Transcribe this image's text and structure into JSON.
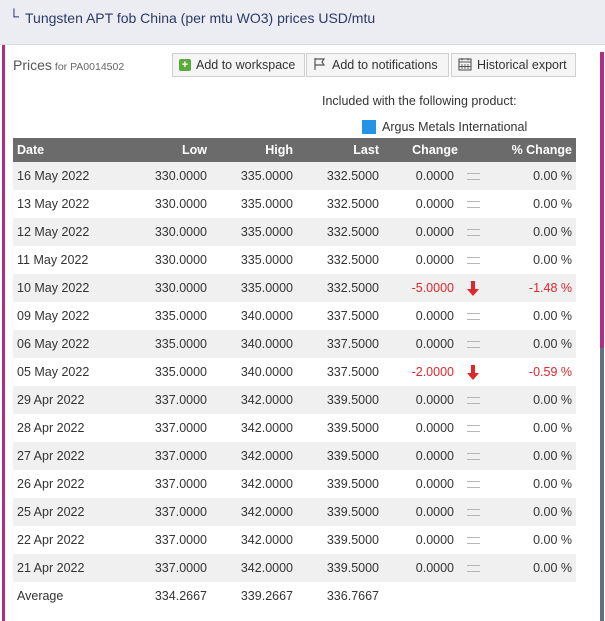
{
  "header": {
    "title": "Tungsten APT fob China (per mtu WO3) prices USD/mtu"
  },
  "prices_panel": {
    "label": "Prices",
    "code_label": "for PA0014502"
  },
  "toolbar": {
    "workspace_label": "Add to workspace",
    "notifications_label": "Add to notifications",
    "export_label": "Historical export"
  },
  "included": {
    "text": "Included with the following product:",
    "product_name": "Argus Metals International",
    "product_color": "#2394e6"
  },
  "table": {
    "headers": {
      "date": "Date",
      "low": "Low",
      "high": "High",
      "last": "Last",
      "change": "Change",
      "pct_change": "% Change"
    },
    "rows": [
      {
        "date": "16 May 2022",
        "low": "330.0000",
        "high": "335.0000",
        "last": "332.5000",
        "change": "0.0000",
        "direction": "flat",
        "pct_change": "0.00 %"
      },
      {
        "date": "13 May 2022",
        "low": "330.0000",
        "high": "335.0000",
        "last": "332.5000",
        "change": "0.0000",
        "direction": "flat",
        "pct_change": "0.00 %"
      },
      {
        "date": "12 May 2022",
        "low": "330.0000",
        "high": "335.0000",
        "last": "332.5000",
        "change": "0.0000",
        "direction": "flat",
        "pct_change": "0.00 %"
      },
      {
        "date": "11 May 2022",
        "low": "330.0000",
        "high": "335.0000",
        "last": "332.5000",
        "change": "0.0000",
        "direction": "flat",
        "pct_change": "0.00 %"
      },
      {
        "date": "10 May 2022",
        "low": "330.0000",
        "high": "335.0000",
        "last": "332.5000",
        "change": "-5.0000",
        "direction": "down",
        "pct_change": "-1.48 %"
      },
      {
        "date": "09 May 2022",
        "low": "335.0000",
        "high": "340.0000",
        "last": "337.5000",
        "change": "0.0000",
        "direction": "flat",
        "pct_change": "0.00 %"
      },
      {
        "date": "06 May 2022",
        "low": "335.0000",
        "high": "340.0000",
        "last": "337.5000",
        "change": "0.0000",
        "direction": "flat",
        "pct_change": "0.00 %"
      },
      {
        "date": "05 May 2022",
        "low": "335.0000",
        "high": "340.0000",
        "last": "337.5000",
        "change": "-2.0000",
        "direction": "down",
        "pct_change": "-0.59 %"
      },
      {
        "date": "29 Apr 2022",
        "low": "337.0000",
        "high": "342.0000",
        "last": "339.5000",
        "change": "0.0000",
        "direction": "flat",
        "pct_change": "0.00 %"
      },
      {
        "date": "28 Apr 2022",
        "low": "337.0000",
        "high": "342.0000",
        "last": "339.5000",
        "change": "0.0000",
        "direction": "flat",
        "pct_change": "0.00 %"
      },
      {
        "date": "27 Apr 2022",
        "low": "337.0000",
        "high": "342.0000",
        "last": "339.5000",
        "change": "0.0000",
        "direction": "flat",
        "pct_change": "0.00 %"
      },
      {
        "date": "26 Apr 2022",
        "low": "337.0000",
        "high": "342.0000",
        "last": "339.5000",
        "change": "0.0000",
        "direction": "flat",
        "pct_change": "0.00 %"
      },
      {
        "date": "25 Apr 2022",
        "low": "337.0000",
        "high": "342.0000",
        "last": "339.5000",
        "change": "0.0000",
        "direction": "flat",
        "pct_change": "0.00 %"
      },
      {
        "date": "22 Apr 2022",
        "low": "337.0000",
        "high": "342.0000",
        "last": "339.5000",
        "change": "0.0000",
        "direction": "flat",
        "pct_change": "0.00 %"
      },
      {
        "date": "21 Apr 2022",
        "low": "337.0000",
        "high": "342.0000",
        "last": "339.5000",
        "change": "0.0000",
        "direction": "flat",
        "pct_change": "0.00 %"
      }
    ],
    "average": {
      "label": "Average",
      "low": "334.2667",
      "high": "339.2667",
      "last": "336.7667"
    }
  },
  "colors": {
    "accent_magenta": "#b22c82",
    "accent_slate": "#5f7183",
    "negative": "#e0262a",
    "header_bg": "#6b6b6b",
    "title_text": "#2b3a66"
  }
}
